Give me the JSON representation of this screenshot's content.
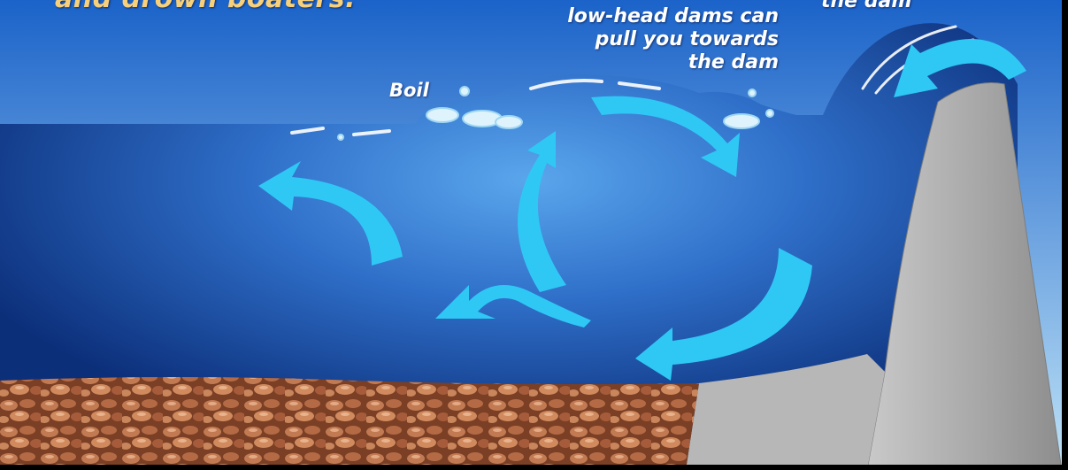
{
  "labels": {
    "headline": "and drown boaters.",
    "backflow_line1": "low-head dams can",
    "backflow_line2": "pull you towards",
    "backflow_line3": "the dam",
    "boil": "Boil",
    "top_right": "the dam"
  },
  "colors": {
    "sky_top": "#1b63c9",
    "sky_bottom": "#bfe3f7",
    "water_deep": "#0c2f7a",
    "water_light": "#5aa6ec",
    "arrow": "#2fc8f5",
    "dam": "#a9a9a9",
    "gravel": "#b06a46",
    "headline": "#f8d07a"
  }
}
